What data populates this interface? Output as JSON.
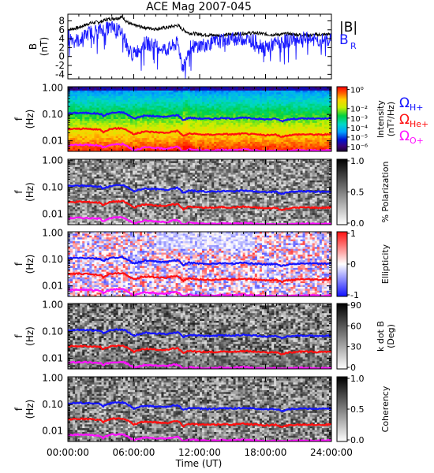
{
  "title": "ACE Mag 2007-045",
  "xlabel": "Time (UT)",
  "xticks": [
    "00:00:00",
    "06:00:00",
    "12:00:00",
    "18:00:00",
    "24:00:00"
  ],
  "colors": {
    "btot": "#000000",
    "br": "#1a1aff",
    "h_plus": "#1515ff",
    "he_plus": "#ff1010",
    "o_plus": "#ff10ff"
  },
  "chart_data": [
    {
      "type": "line",
      "panel": "field",
      "ylabel": "B\n(nT)",
      "yticks": [
        "8",
        "6",
        "4",
        "2",
        "0",
        "-2",
        "-4"
      ],
      "ylim": [
        -5,
        9.5
      ],
      "xlim_hours": [
        0,
        24
      ],
      "legend": [
        "|B|",
        "B",
        "R"
      ],
      "series": [
        {
          "name": "|B|",
          "color": "#000000",
          "x_hours": [
            0,
            1,
            2,
            3,
            3.5,
            4,
            5,
            5.5,
            6,
            7,
            8,
            9,
            10,
            10.5,
            11,
            12,
            13,
            14,
            15,
            16,
            17,
            18,
            19,
            20,
            21,
            22,
            23,
            24
          ],
          "values": [
            6.0,
            6.5,
            7.5,
            7.8,
            8.3,
            8.5,
            8.8,
            7.5,
            7.0,
            6.5,
            6.2,
            6.5,
            7.0,
            6.0,
            5.3,
            5.0,
            4.8,
            4.7,
            5.0,
            5.2,
            5.3,
            5.0,
            4.9,
            5.1,
            4.9,
            4.8,
            4.9,
            5.0
          ]
        },
        {
          "name": "B_R",
          "color": "#1a1aff",
          "x_hours": [
            0,
            1,
            2,
            3,
            4,
            5,
            5.5,
            6,
            7,
            8,
            9,
            10,
            10.5,
            11,
            12,
            13,
            14,
            15,
            16,
            17,
            18,
            19,
            20,
            21,
            22,
            23,
            24
          ],
          "values": [
            4.5,
            3.5,
            5.5,
            6.0,
            6.5,
            5.5,
            1.5,
            0.5,
            3.0,
            2.5,
            1.5,
            3.0,
            -2.5,
            2.0,
            2.5,
            3.0,
            3.5,
            4.0,
            4.0,
            3.5,
            2.0,
            3.0,
            3.5,
            4.0,
            4.0,
            3.5,
            3.8
          ]
        }
      ]
    },
    {
      "type": "heatmap",
      "panel": "intensity",
      "ylabel": "f\n(Hz)",
      "yticks": [
        "1.00",
        "0.10",
        "0.01"
      ],
      "colorbar_label": "Intensity\n(nT²/Hz)",
      "colorbar_ticks": [
        "10⁰",
        "10⁻²",
        "10⁻³",
        "10⁻⁴",
        "10⁻⁵",
        "10⁻⁶"
      ],
      "colorbar_range_log10": [
        -6.5,
        0.3
      ],
      "legend": [
        "ΩH+",
        "ΩHe+",
        "ΩO+"
      ],
      "cyclotron_lines": true
    },
    {
      "type": "heatmap",
      "panel": "polarization",
      "ylabel": "f\n(Hz)",
      "yticks": [
        "1.00",
        "0.10",
        "0.01"
      ],
      "colorbar_label": "% Polarization",
      "colorbar_ticks": [
        "1.0",
        "0.5",
        "0.0"
      ],
      "colorbar_range": [
        0,
        1
      ],
      "cyclotron_lines": true
    },
    {
      "type": "heatmap",
      "panel": "ellipticity",
      "ylabel": "f\n(Hz)",
      "yticks": [
        "1.00",
        "0.10",
        "0.01"
      ],
      "colorbar_label": "Ellipticity",
      "colorbar_ticks": [
        "1",
        "0",
        "-1"
      ],
      "colorbar_range": [
        -1,
        1
      ],
      "cyclotron_lines": true
    },
    {
      "type": "heatmap",
      "panel": "kdotb",
      "ylabel": "f\n(Hz)",
      "yticks": [
        "1.00",
        "0.10",
        "0.01"
      ],
      "colorbar_label": "k dot B\n(Deg)",
      "colorbar_ticks": [
        "90",
        "60",
        "30",
        "0"
      ],
      "colorbar_range": [
        0,
        90
      ],
      "cyclotron_lines": true
    },
    {
      "type": "heatmap",
      "panel": "coherency",
      "ylabel": "f\n(Hz)",
      "yticks": [
        "1.00",
        "0.10",
        "0.01"
      ],
      "colorbar_label": "Coherency",
      "colorbar_ticks": [
        "1.0",
        "0.5",
        "0.0"
      ],
      "colorbar_range": [
        0,
        1
      ],
      "cyclotron_lines": true
    }
  ],
  "cyclotron": {
    "flim_log10": [
      -2.4,
      0.05
    ],
    "x_hours": [
      0,
      1,
      2,
      3,
      3.2,
      3.5,
      4,
      5,
      5.5,
      6,
      6.5,
      7,
      8,
      9,
      9.5,
      10,
      10.5,
      11,
      12,
      13,
      14,
      15,
      16,
      17,
      18,
      19,
      19.5,
      20,
      21,
      22,
      23,
      24
    ],
    "h_plus_hz": [
      0.11,
      0.115,
      0.112,
      0.105,
      0.085,
      0.1,
      0.115,
      0.12,
      0.095,
      0.07,
      0.08,
      0.09,
      0.085,
      0.08,
      0.09,
      0.095,
      0.06,
      0.075,
      0.07,
      0.068,
      0.072,
      0.07,
      0.075,
      0.07,
      0.065,
      0.068,
      0.055,
      0.065,
      0.07,
      0.07,
      0.068,
      0.07
    ]
  }
}
